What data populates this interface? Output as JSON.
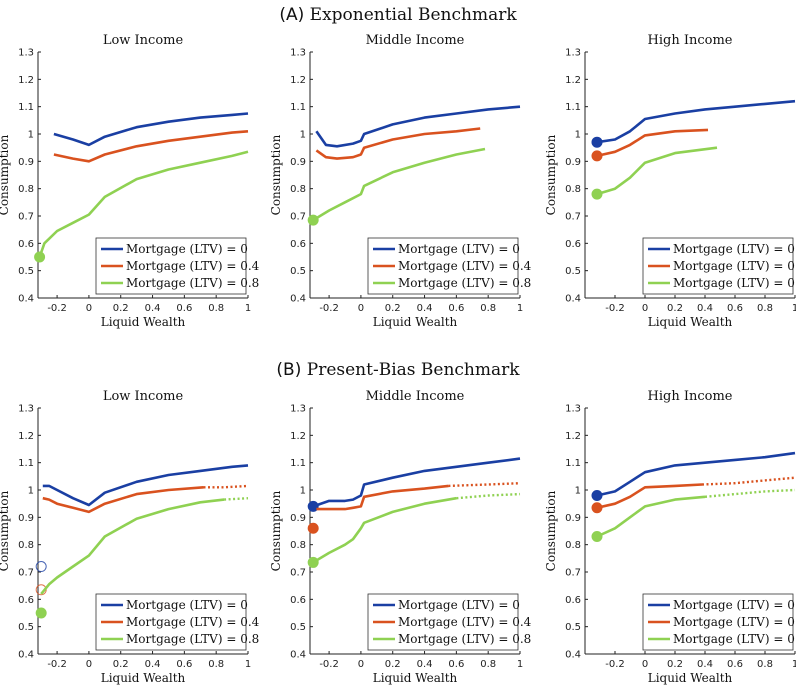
{
  "sections": [
    {
      "letter": "(A)",
      "title": "Exponential Benchmark"
    },
    {
      "letter": "(B)",
      "title": "Present-Bias Benchmark"
    }
  ],
  "colors": {
    "ltv0": "#1a3fa3",
    "ltv04": "#d9521f",
    "ltv08": "#8fd152"
  },
  "chart_data": [
    {
      "type": "line",
      "section": "A",
      "title": "Low Income",
      "xlabel": "Liquid Wealth",
      "ylabel": "Consumption",
      "xlim": [
        -0.32,
        1.0
      ],
      "ylim": [
        0.4,
        1.3
      ],
      "xticks": [
        -0.2,
        0,
        0.2,
        0.4,
        0.6,
        0.8,
        1
      ],
      "xtick_labels": [
        "-0.2",
        "0",
        "0.2",
        "0.4",
        "0.6",
        "0.8",
        "1"
      ],
      "yticks": [
        0.4,
        0.5,
        0.6,
        0.7,
        0.8,
        0.9,
        1,
        1.1,
        1.2,
        1.3
      ],
      "ytick_labels": [
        "0.4",
        "0.5",
        "0.6",
        "0.7",
        "0.8",
        "0.9",
        "1",
        "1.1",
        "1.2",
        "1.3"
      ],
      "legend_position": "bottom-right",
      "series": [
        {
          "name": "Mortgage (LTV) = 0",
          "color": "#1a3fa3",
          "x": [
            -0.22,
            -0.1,
            0,
            0.1,
            0.3,
            0.5,
            0.7,
            0.9,
            1.0
          ],
          "y": [
            1.0,
            0.98,
            0.96,
            0.99,
            1.025,
            1.045,
            1.06,
            1.07,
            1.075
          ],
          "dotted_from": null,
          "marker": null
        },
        {
          "name": "Mortgage (LTV) = 0.4",
          "color": "#d9521f",
          "x": [
            -0.22,
            -0.1,
            0,
            0.1,
            0.3,
            0.5,
            0.7,
            0.9,
            1.0
          ],
          "y": [
            0.925,
            0.91,
            0.9,
            0.925,
            0.955,
            0.975,
            0.99,
            1.005,
            1.01
          ],
          "dotted_from": null,
          "marker": null
        },
        {
          "name": "Mortgage (LTV) = 0.8",
          "color": "#8fd152",
          "x": [
            -0.31,
            -0.28,
            -0.2,
            -0.1,
            0,
            0.1,
            0.3,
            0.5,
            0.7,
            0.9,
            1.0
          ],
          "y": [
            0.55,
            0.6,
            0.645,
            0.675,
            0.705,
            0.77,
            0.835,
            0.87,
            0.895,
            0.92,
            0.935
          ],
          "dotted_from": null,
          "marker": {
            "x": -0.31,
            "y": 0.55,
            "filled": true
          }
        }
      ]
    },
    {
      "type": "line",
      "section": "A",
      "title": "Middle Income",
      "xlabel": "Liquid Wealth",
      "ylabel": "Consumption",
      "xlim": [
        -0.32,
        1.0
      ],
      "ylim": [
        0.4,
        1.3
      ],
      "xticks": [
        -0.2,
        0,
        0.2,
        0.4,
        0.6,
        0.8,
        1
      ],
      "xtick_labels": [
        "-0.2",
        "0",
        "0.2",
        "0.4",
        "0.6",
        "0.8",
        "1"
      ],
      "yticks": [
        0.4,
        0.5,
        0.6,
        0.7,
        0.8,
        0.9,
        1,
        1.1,
        1.2,
        1.3
      ],
      "ytick_labels": [
        "0.4",
        "0.5",
        "0.6",
        "0.7",
        "0.8",
        "0.9",
        "1",
        "1.1",
        "1.2",
        "1.3"
      ],
      "legend_position": "bottom-right",
      "series": [
        {
          "name": "Mortgage (LTV) = 0",
          "color": "#1a3fa3",
          "x": [
            -0.28,
            -0.22,
            -0.15,
            -0.05,
            0,
            0.02,
            0.2,
            0.4,
            0.6,
            0.8,
            1.0
          ],
          "y": [
            1.01,
            0.96,
            0.955,
            0.965,
            0.975,
            1.0,
            1.035,
            1.06,
            1.075,
            1.09,
            1.1
          ],
          "dotted_from": null,
          "marker": null
        },
        {
          "name": "Mortgage (LTV) = 0.4",
          "color": "#d9521f",
          "x": [
            -0.28,
            -0.22,
            -0.15,
            -0.05,
            0,
            0.02,
            0.2,
            0.4,
            0.6,
            0.75
          ],
          "y": [
            0.94,
            0.915,
            0.91,
            0.915,
            0.925,
            0.95,
            0.98,
            1.0,
            1.01,
            1.02
          ],
          "dotted_from": null,
          "marker": null
        },
        {
          "name": "Mortgage (LTV) = 0.8",
          "color": "#8fd152",
          "x": [
            -0.3,
            -0.2,
            -0.1,
            0,
            0.02,
            0.2,
            0.4,
            0.6,
            0.78
          ],
          "y": [
            0.685,
            0.72,
            0.75,
            0.78,
            0.81,
            0.86,
            0.895,
            0.925,
            0.945
          ],
          "dotted_from": null,
          "marker": {
            "x": -0.3,
            "y": 0.685,
            "filled": true
          }
        }
      ]
    },
    {
      "type": "line",
      "section": "A",
      "title": "High Income",
      "xlabel": "Liquid Wealth",
      "ylabel": "Consumption",
      "xlim": [
        -0.4,
        1.0
      ],
      "ylim": [
        0.4,
        1.3
      ],
      "xticks": [
        -0.2,
        0,
        0.2,
        0.4,
        0.6,
        0.8,
        1
      ],
      "xtick_labels": [
        "-0.2",
        "0",
        "0.2",
        "0.4",
        "0.6",
        "0.8",
        "1"
      ],
      "yticks": [
        0.4,
        0.5,
        0.6,
        0.7,
        0.8,
        0.9,
        1,
        1.1,
        1.2,
        1.3
      ],
      "ytick_labels": [
        "0.4",
        "0.5",
        "0.6",
        "0.7",
        "0.8",
        "0.9",
        "1",
        "1.1",
        "1.2",
        "1.3"
      ],
      "legend_position": "bottom-right",
      "series": [
        {
          "name": "Mortgage (LTV) = 0",
          "color": "#1a3fa3",
          "x": [
            -0.32,
            -0.2,
            -0.1,
            0,
            0.2,
            0.4,
            0.6,
            0.8,
            1.0
          ],
          "y": [
            0.97,
            0.98,
            1.01,
            1.055,
            1.075,
            1.09,
            1.1,
            1.11,
            1.12
          ],
          "dotted_from": null,
          "marker": {
            "x": -0.32,
            "y": 0.97,
            "filled": true
          }
        },
        {
          "name": "Mortgage (LTV) = 0.4",
          "color": "#d9521f",
          "x": [
            -0.32,
            -0.2,
            -0.1,
            0,
            0.2,
            0.42
          ],
          "y": [
            0.92,
            0.935,
            0.96,
            0.995,
            1.01,
            1.015
          ],
          "dotted_from": null,
          "marker": {
            "x": -0.32,
            "y": 0.92,
            "filled": true
          }
        },
        {
          "name": "Mortgage (LTV) = 0.8",
          "color": "#8fd152",
          "x": [
            -0.32,
            -0.2,
            -0.1,
            0,
            0.2,
            0.48
          ],
          "y": [
            0.78,
            0.8,
            0.84,
            0.895,
            0.93,
            0.95
          ],
          "dotted_from": null,
          "marker": {
            "x": -0.32,
            "y": 0.78,
            "filled": true
          }
        }
      ]
    },
    {
      "type": "line",
      "section": "B",
      "title": "Low Income",
      "xlabel": "Liquid Wealth",
      "ylabel": "Consumption",
      "xlim": [
        -0.32,
        1.0
      ],
      "ylim": [
        0.4,
        1.3
      ],
      "xticks": [
        -0.2,
        0,
        0.2,
        0.4,
        0.6,
        0.8,
        1
      ],
      "xtick_labels": [
        "-0.2",
        "0",
        "0.2",
        "0.4",
        "0.6",
        "0.8",
        "1"
      ],
      "yticks": [
        0.4,
        0.5,
        0.6,
        0.7,
        0.8,
        0.9,
        1,
        1.1,
        1.2,
        1.3
      ],
      "ytick_labels": [
        "0.4",
        "0.5",
        "0.6",
        "0.7",
        "0.8",
        "0.9",
        "1",
        "1.1",
        "1.2",
        "1.3"
      ],
      "legend_position": "bottom-right",
      "series": [
        {
          "name": "Mortgage (LTV) = 0",
          "color": "#1a3fa3",
          "x": [
            -0.29,
            -0.25,
            -0.2,
            -0.1,
            0,
            0.1,
            0.3,
            0.5,
            0.7,
            0.9,
            1.0
          ],
          "y": [
            1.015,
            1.015,
            1.0,
            0.97,
            0.945,
            0.99,
            1.03,
            1.055,
            1.07,
            1.085,
            1.09
          ],
          "dotted_from": null,
          "marker": {
            "x": -0.3,
            "y": 0.72,
            "filled": false
          }
        },
        {
          "name": "Mortgage (LTV) = 0.4",
          "color": "#d9521f",
          "x": [
            -0.29,
            -0.25,
            -0.2,
            -0.1,
            0,
            0.1,
            0.3,
            0.5,
            0.72,
            0.85,
            1.0
          ],
          "y": [
            0.97,
            0.965,
            0.95,
            0.935,
            0.92,
            0.95,
            0.985,
            1.0,
            1.01,
            1.01,
            1.015
          ],
          "dotted_from": 0.72,
          "marker": {
            "x": -0.3,
            "y": 0.635,
            "filled": false
          }
        },
        {
          "name": "Mortgage (LTV) = 0.8",
          "color": "#8fd152",
          "x": [
            -0.3,
            -0.25,
            -0.2,
            -0.1,
            0,
            0.1,
            0.3,
            0.5,
            0.7,
            0.85,
            1.0
          ],
          "y": [
            0.62,
            0.655,
            0.68,
            0.72,
            0.76,
            0.83,
            0.895,
            0.93,
            0.955,
            0.965,
            0.97
          ],
          "dotted_from": 0.85,
          "marker": {
            "x": -0.3,
            "y": 0.55,
            "filled": true
          }
        }
      ]
    },
    {
      "type": "line",
      "section": "B",
      "title": "Middle Income",
      "xlabel": "Liquid Wealth",
      "ylabel": "Consumption",
      "xlim": [
        -0.32,
        1.0
      ],
      "ylim": [
        0.4,
        1.3
      ],
      "xticks": [
        -0.2,
        0,
        0.2,
        0.4,
        0.6,
        0.8,
        1
      ],
      "xtick_labels": [
        "-0.2",
        "0",
        "0.2",
        "0.4",
        "0.6",
        "0.8",
        "1"
      ],
      "yticks": [
        0.4,
        0.5,
        0.6,
        0.7,
        0.8,
        0.9,
        1,
        1.1,
        1.2,
        1.3
      ],
      "ytick_labels": [
        "0.4",
        "0.5",
        "0.6",
        "0.7",
        "0.8",
        "0.9",
        "1",
        "1.1",
        "1.2",
        "1.3"
      ],
      "legend_position": "bottom-right",
      "series": [
        {
          "name": "Mortgage (LTV) = 0",
          "color": "#1a3fa3",
          "x": [
            -0.3,
            -0.2,
            -0.1,
            -0.05,
            0,
            0.02,
            0.2,
            0.4,
            0.6,
            0.8,
            1.0
          ],
          "y": [
            0.94,
            0.96,
            0.96,
            0.965,
            0.98,
            1.02,
            1.045,
            1.07,
            1.085,
            1.1,
            1.115
          ],
          "dotted_from": null,
          "marker": {
            "x": -0.3,
            "y": 0.94,
            "filled": true
          }
        },
        {
          "name": "Mortgage (LTV) = 0.4",
          "color": "#d9521f",
          "x": [
            -0.28,
            -0.2,
            -0.1,
            -0.05,
            0,
            0.02,
            0.2,
            0.4,
            0.55,
            0.8,
            1.0
          ],
          "y": [
            0.93,
            0.93,
            0.93,
            0.935,
            0.94,
            0.975,
            0.995,
            1.005,
            1.015,
            1.02,
            1.025
          ],
          "dotted_from": 0.55,
          "marker": {
            "x": -0.3,
            "y": 0.86,
            "filled": true
          }
        },
        {
          "name": "Mortgage (LTV) = 0.8",
          "color": "#8fd152",
          "x": [
            -0.3,
            -0.2,
            -0.1,
            -0.05,
            0,
            0.02,
            0.2,
            0.4,
            0.6,
            0.8,
            1.0
          ],
          "y": [
            0.735,
            0.77,
            0.8,
            0.82,
            0.86,
            0.88,
            0.92,
            0.95,
            0.97,
            0.98,
            0.985
          ],
          "dotted_from": 0.6,
          "marker": {
            "x": -0.3,
            "y": 0.735,
            "filled": true
          }
        }
      ]
    },
    {
      "type": "line",
      "section": "B",
      "title": "High Income",
      "xlabel": "Liquid Wealth",
      "ylabel": "Consumption",
      "xlim": [
        -0.4,
        1.0
      ],
      "ylim": [
        0.4,
        1.3
      ],
      "xticks": [
        -0.2,
        0,
        0.2,
        0.4,
        0.6,
        0.8,
        1
      ],
      "xtick_labels": [
        "-0.2",
        "0",
        "0.2",
        "0.4",
        "0.6",
        "0.8",
        "1"
      ],
      "yticks": [
        0.4,
        0.5,
        0.6,
        0.7,
        0.8,
        0.9,
        1,
        1.1,
        1.2,
        1.3
      ],
      "ytick_labels": [
        "0.4",
        "0.5",
        "0.6",
        "0.7",
        "0.8",
        "0.9",
        "1",
        "1.1",
        "1.2",
        "1.3"
      ],
      "legend_position": "bottom-right",
      "series": [
        {
          "name": "Mortgage (LTV) = 0",
          "color": "#1a3fa3",
          "x": [
            -0.32,
            -0.2,
            -0.1,
            0,
            0.2,
            0.4,
            0.6,
            0.8,
            1.0
          ],
          "y": [
            0.98,
            0.995,
            1.03,
            1.065,
            1.09,
            1.1,
            1.11,
            1.12,
            1.135
          ],
          "dotted_from": null,
          "marker": {
            "x": -0.32,
            "y": 0.98,
            "filled": true
          }
        },
        {
          "name": "Mortgage (LTV) = 0.4",
          "color": "#d9521f",
          "x": [
            -0.32,
            -0.2,
            -0.1,
            0,
            0.2,
            0.38,
            0.6,
            0.8,
            1.0
          ],
          "y": [
            0.935,
            0.95,
            0.975,
            1.01,
            1.015,
            1.02,
            1.025,
            1.035,
            1.045
          ],
          "dotted_from": 0.38,
          "marker": {
            "x": -0.32,
            "y": 0.935,
            "filled": true
          }
        },
        {
          "name": "Mortgage (LTV) = 0.8",
          "color": "#8fd152",
          "x": [
            -0.32,
            -0.2,
            -0.1,
            0,
            0.2,
            0.4,
            0.6,
            0.8,
            1.0
          ],
          "y": [
            0.83,
            0.86,
            0.9,
            0.94,
            0.965,
            0.975,
            0.985,
            0.995,
            1.0
          ],
          "dotted_from": 0.4,
          "marker": {
            "x": -0.32,
            "y": 0.83,
            "filled": true
          }
        }
      ]
    }
  ]
}
